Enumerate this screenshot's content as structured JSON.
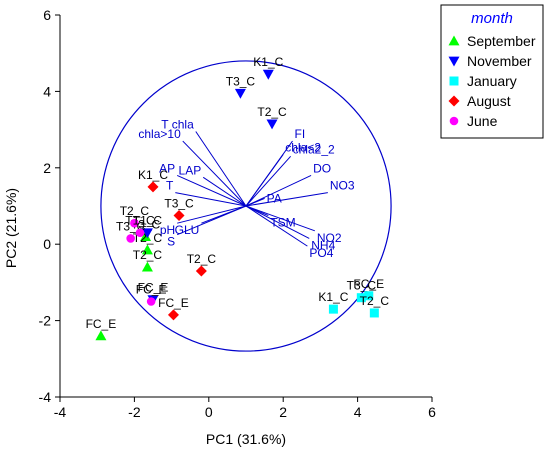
{
  "chart_data": {
    "type": "scatter",
    "subtype": "pca-biplot",
    "xlabel": "PC1 (31.6%)",
    "ylabel": "PC2 (21.6%)",
    "xlim": [
      -4,
      6
    ],
    "ylim": [
      -4,
      6
    ],
    "xticks": [
      -4,
      -2,
      0,
      2,
      4,
      6
    ],
    "yticks": [
      -4,
      -2,
      0,
      2,
      4,
      6
    ],
    "grid": false,
    "legend_position": "top-right (outside plot area)",
    "legend_title": "month",
    "circle": {
      "center": [
        1.0,
        1.0
      ],
      "radius": 3.9
    },
    "series": [
      {
        "name": "September",
        "marker": "triangle-up",
        "color": "#00ff00",
        "points": [
          {
            "x": -1.7,
            "y": 0.2,
            "label": "T3_C"
          },
          {
            "x": -1.65,
            "y": -0.15,
            "label": "T2_C"
          },
          {
            "x": -1.65,
            "y": -0.6,
            "label": "T2_C"
          },
          {
            "x": -2.9,
            "y": -2.4,
            "label": "FC_E"
          }
        ]
      },
      {
        "name": "November",
        "marker": "triangle-down",
        "color": "#0000ff",
        "points": [
          {
            "x": 1.6,
            "y": 4.45,
            "label": "K1_C"
          },
          {
            "x": 0.85,
            "y": 3.95,
            "label": "T3_C"
          },
          {
            "x": 1.7,
            "y": 3.15,
            "label": "T2_C"
          },
          {
            "x": -1.65,
            "y": 0.3,
            "label": "T1_C"
          },
          {
            "x": -1.5,
            "y": -1.45,
            "label": "FC_E"
          }
        ]
      },
      {
        "name": "January",
        "marker": "square",
        "color": "#00ffff",
        "points": [
          {
            "x": 3.35,
            "y": -1.7,
            "label": "K1_C"
          },
          {
            "x": 4.1,
            "y": -1.4,
            "label": "T3_C"
          },
          {
            "x": 4.3,
            "y": -1.35,
            "label": "FC_E"
          },
          {
            "x": 4.45,
            "y": -1.8,
            "label": "T2_C"
          }
        ]
      },
      {
        "name": "August",
        "marker": "diamond",
        "color": "#ff0000",
        "points": [
          {
            "x": -1.5,
            "y": 1.5,
            "label": "K1_C"
          },
          {
            "x": -0.8,
            "y": 0.75,
            "label": "T3_C"
          },
          {
            "x": -0.2,
            "y": -0.7,
            "label": "T2_C"
          },
          {
            "x": -0.95,
            "y": -1.85,
            "label": "FC_E"
          }
        ]
      },
      {
        "name": "June",
        "marker": "circle",
        "color": "#ff00ff",
        "points": [
          {
            "x": -2.0,
            "y": 0.55,
            "label": "T2_C"
          },
          {
            "x": -2.1,
            "y": 0.15,
            "label": "T3_C"
          },
          {
            "x": -1.85,
            "y": 0.3,
            "label": "T1_C"
          },
          {
            "x": -1.55,
            "y": -1.5,
            "label": "FC_E"
          }
        ]
      }
    ],
    "loadings": [
      {
        "label": "T chla",
        "x": -0.35,
        "y": 2.95
      },
      {
        "label": "chla>10",
        "x": -0.7,
        "y": 2.7
      },
      {
        "label": "chla<2",
        "x": 2.0,
        "y": 2.35
      },
      {
        "label": "chla2_2",
        "x": 2.2,
        "y": 2.3
      },
      {
        "label": "FI",
        "x": 2.25,
        "y": 2.7
      },
      {
        "label": "DO",
        "x": 2.75,
        "y": 1.8
      },
      {
        "label": "AP",
        "x": -0.85,
        "y": 1.8
      },
      {
        "label": "LAP",
        "x": -0.15,
        "y": 1.75
      },
      {
        "label": "PA",
        "x": 1.5,
        "y": 1.2
      },
      {
        "label": "NO3",
        "x": 3.2,
        "y": 1.35
      },
      {
        "label": "T",
        "x": -0.9,
        "y": 1.35
      },
      {
        "label": "pH",
        "x": -0.85,
        "y": 0.55
      },
      {
        "label": "GLU",
        "x": -0.2,
        "y": 0.55
      },
      {
        "label": "S",
        "x": -0.85,
        "y": 0.25
      },
      {
        "label": "TSM",
        "x": 1.6,
        "y": 0.75
      },
      {
        "label": "NO2",
        "x": 2.85,
        "y": 0.35
      },
      {
        "label": "NH4",
        "x": 2.7,
        "y": 0.15
      },
      {
        "label": "PO4",
        "x": 2.65,
        "y": -0.05
      }
    ],
    "loading_origin": [
      1.0,
      1.0
    ],
    "colors": {
      "axis": "#000000",
      "loadings": "#0000cc",
      "circle": "#0000cc",
      "legend_title": "#0000ff"
    }
  }
}
